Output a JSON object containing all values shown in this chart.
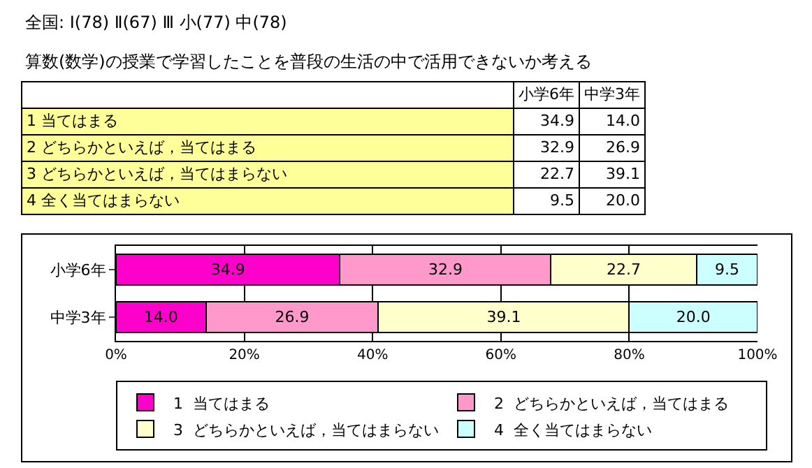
{
  "chart_data": {
    "type": "bar",
    "orientation": "horizontal",
    "stacked": true,
    "title": "全国: Ⅰ(78)  Ⅱ(67)  Ⅲ 小(77) 中(78)",
    "subtitle": "算数(数学)の授業で学習したことを普段の生活の中で活用できないか考える",
    "categories": [
      "小学6年",
      "中学3年"
    ],
    "series": [
      {
        "name": "1  当てはまる",
        "color": "#ff00cc",
        "values": [
          34.9,
          14.0
        ],
        "value_labels": [
          "34.9",
          "14.0"
        ]
      },
      {
        "name": "2  どちらかといえば，当てはまる",
        "color": "#ff99cc",
        "values": [
          32.9,
          26.9
        ],
        "value_labels": [
          "32.9",
          "26.9"
        ]
      },
      {
        "name": "3  どちらかといえば，当てはまらない",
        "color": "#ffffcc",
        "values": [
          22.7,
          39.1
        ],
        "value_labels": [
          "22.7",
          "39.1"
        ]
      },
      {
        "name": "4  全く当てはまらない",
        "color": "#ccffff",
        "values": [
          9.5,
          20.0
        ],
        "value_labels": [
          "9.5",
          "20.0"
        ]
      }
    ],
    "xlim": [
      0,
      100
    ],
    "xticks": [
      {
        "value": 0,
        "label": "0%"
      },
      {
        "value": 20,
        "label": "20%"
      },
      {
        "value": 40,
        "label": "40%"
      },
      {
        "value": 60,
        "label": "60%"
      },
      {
        "value": 80,
        "label": "80%"
      },
      {
        "value": 100,
        "label": "100%"
      }
    ],
    "grid": "x",
    "legend": "bottom"
  }
}
